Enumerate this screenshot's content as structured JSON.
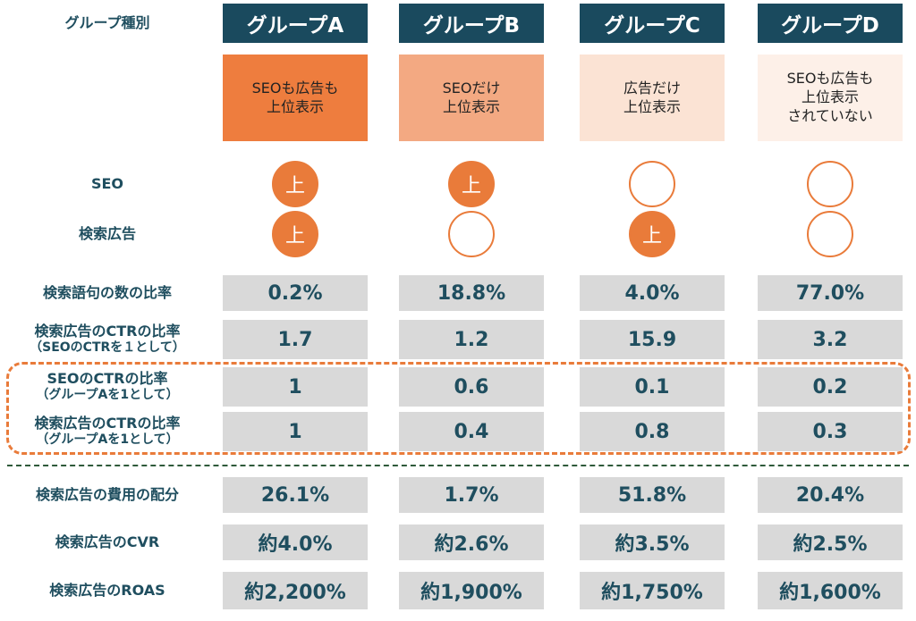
{
  "header_label": "グループ種別",
  "groups": [
    {
      "name": "グループA",
      "desc": [
        "SEOも広告も",
        "上位表示"
      ],
      "desc_bg": "#ee7d3e"
    },
    {
      "name": "グループB",
      "desc": [
        "SEOだけ",
        "上位表示"
      ],
      "desc_bg": "#f3a982"
    },
    {
      "name": "グループC",
      "desc": [
        "広告だけ",
        "上位表示"
      ],
      "desc_bg": "#fbe3d4"
    },
    {
      "name": "グループD",
      "desc": [
        "SEOも広告も",
        "上位表示",
        "されていない"
      ],
      "desc_bg": "#fdf0e8"
    }
  ],
  "indicator_rows": [
    {
      "label": "SEO",
      "values": [
        "上",
        "上",
        "",
        ""
      ]
    },
    {
      "label": "検索広告",
      "values": [
        "上",
        "",
        "上",
        ""
      ]
    }
  ],
  "metric_rows": [
    {
      "label": "検索語句の数の比率",
      "sub": "",
      "values": [
        "0.2%",
        "18.8%",
        "4.0%",
        "77.0%"
      ]
    },
    {
      "label": "検索広告のCTRの比率",
      "sub": "（SEOのCTRを１として）",
      "values": [
        "1.7",
        "1.2",
        "15.9",
        "3.2"
      ]
    },
    {
      "label": "SEOのCTRの比率",
      "sub": "（グループAを1として）",
      "values": [
        "1",
        "0.6",
        "0.1",
        "0.2"
      ]
    },
    {
      "label": "検索広告のCTRの比率",
      "sub": "（グループAを1として）",
      "values": [
        "1",
        "0.4",
        "0.8",
        "0.3"
      ]
    },
    {
      "label": "検索広告の費用の配分",
      "sub": "",
      "values": [
        "26.1%",
        "1.7%",
        "51.8%",
        "20.4%"
      ]
    },
    {
      "label": "検索広告のCVR",
      "sub": "",
      "values": [
        "約4.0%",
        "約2.6%",
        "約3.5%",
        "約2.5%"
      ]
    },
    {
      "label": "検索広告のROAS",
      "sub": "",
      "values": [
        "約2,200%",
        "約1,900%",
        "約1,750%",
        "約1,600%"
      ]
    }
  ],
  "colors": {
    "header_bg": "#1a4a5e",
    "accent": "#e97b3a",
    "cell_bg": "#d9d9d9",
    "text": "#1f4e5f"
  }
}
